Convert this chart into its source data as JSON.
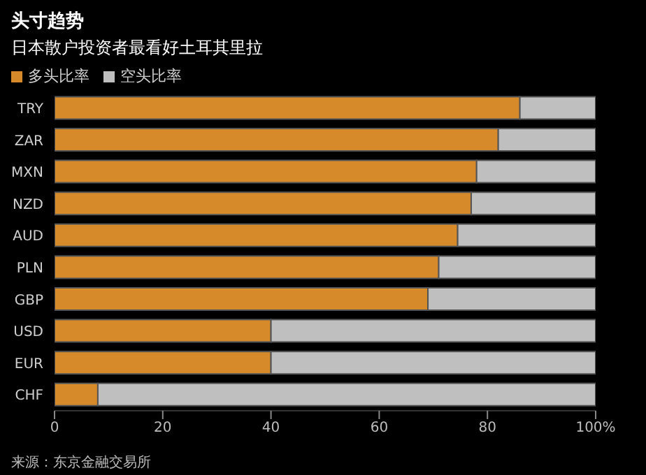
{
  "chart_data": {
    "type": "bar",
    "title": "头寸趋势",
    "subtitle": "日本散户投资者最看好土耳其里拉",
    "orientation": "horizontal",
    "stacked": true,
    "categories": [
      "TRY",
      "ZAR",
      "MXN",
      "NZD",
      "AUD",
      "PLN",
      "GBP",
      "USD",
      "EUR",
      "CHF"
    ],
    "series": [
      {
        "name": "多头比率",
        "color": "#d68a2a",
        "values": [
          86,
          82,
          78,
          77,
          74.5,
          71,
          69,
          40,
          40,
          8
        ]
      },
      {
        "name": "空头比率",
        "color": "#bfbfbf",
        "values": [
          14,
          18,
          22,
          23,
          25.5,
          29,
          31,
          60,
          60,
          92
        ]
      }
    ],
    "xlim": [
      0,
      100
    ],
    "xticks": [
      0,
      20,
      40,
      60,
      80,
      {
        "value": 100,
        "label": "100%"
      }
    ],
    "legend": "top left",
    "grid": false,
    "annotations": [
      "来源：东京金融交易所"
    ]
  }
}
